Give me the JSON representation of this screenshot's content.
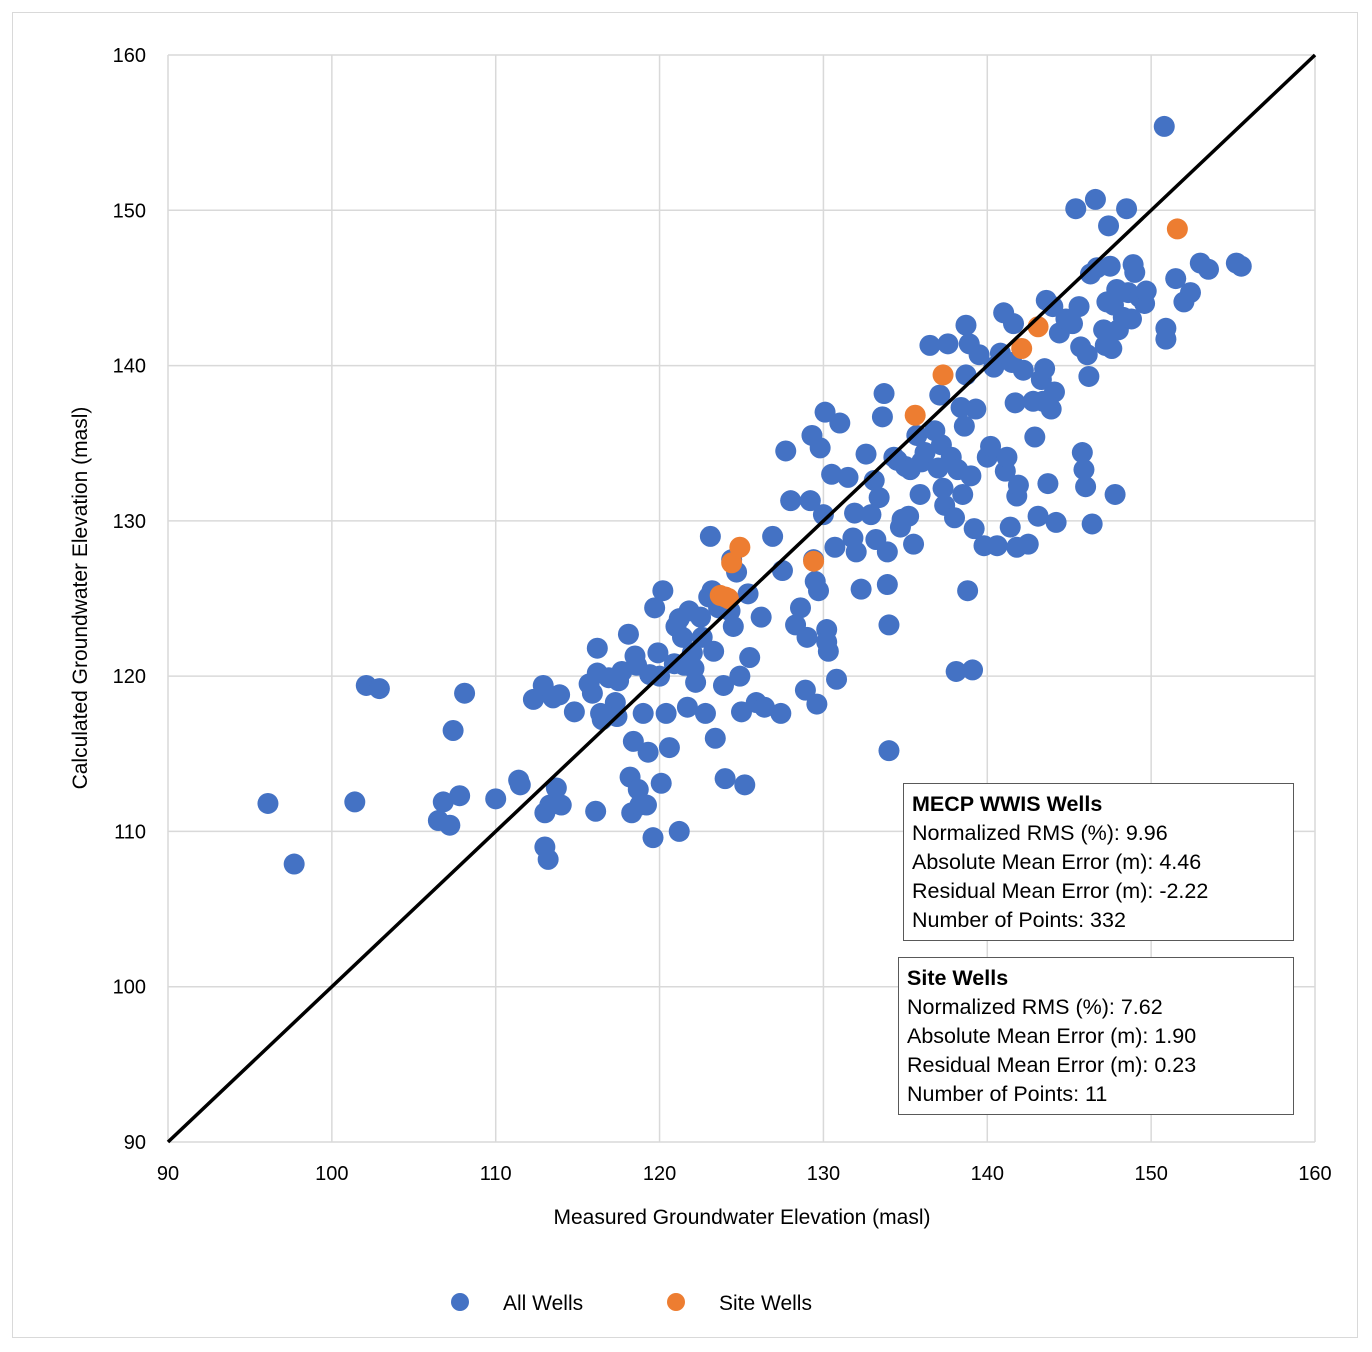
{
  "chart_data": {
    "type": "scatter",
    "xlabel": "Measured Groundwater Elevation (masl)",
    "ylabel": "Calculated Groundwater Elevation (masl)",
    "xlim": [
      90,
      160
    ],
    "ylim": [
      90,
      160
    ],
    "xticks": [
      "90",
      "100",
      "110",
      "120",
      "130",
      "140",
      "150",
      "160"
    ],
    "yticks": [
      "90",
      "100",
      "110",
      "120",
      "130",
      "140",
      "150",
      "160"
    ],
    "grid": true,
    "legend_position": "bottom",
    "reference_line": {
      "x": [
        90,
        160
      ],
      "y": [
        90,
        160
      ],
      "color": "#000000"
    },
    "series": [
      {
        "name": "All Wells",
        "color": "#4472C4",
        "points": [
          [
            96.1,
            111.8
          ],
          [
            97.7,
            107.9
          ],
          [
            101.4,
            111.9
          ],
          [
            102.1,
            119.4
          ],
          [
            102.9,
            119.2
          ],
          [
            106.5,
            110.7
          ],
          [
            106.8,
            111.9
          ],
          [
            107.2,
            110.4
          ],
          [
            107.4,
            116.5
          ],
          [
            107.8,
            112.3
          ],
          [
            108.1,
            118.9
          ],
          [
            110.0,
            112.1
          ],
          [
            111.4,
            113.3
          ],
          [
            111.5,
            113.0
          ],
          [
            112.3,
            118.5
          ],
          [
            112.9,
            119.4
          ],
          [
            113.0,
            109.0
          ],
          [
            113.0,
            111.2
          ],
          [
            113.2,
            108.2
          ],
          [
            113.3,
            111.7
          ],
          [
            113.5,
            118.6
          ],
          [
            113.7,
            112.8
          ],
          [
            113.9,
            118.8
          ],
          [
            114.0,
            111.7
          ],
          [
            114.8,
            117.7
          ],
          [
            115.7,
            119.5
          ],
          [
            115.9,
            118.9
          ],
          [
            116.1,
            111.3
          ],
          [
            116.2,
            120.2
          ],
          [
            116.2,
            121.8
          ],
          [
            116.4,
            117.6
          ],
          [
            116.5,
            117.2
          ],
          [
            116.9,
            119.9
          ],
          [
            117.3,
            118.3
          ],
          [
            117.4,
            117.4
          ],
          [
            117.5,
            119.7
          ],
          [
            117.7,
            120.3
          ],
          [
            118.1,
            122.7
          ],
          [
            118.2,
            113.5
          ],
          [
            118.3,
            111.2
          ],
          [
            118.4,
            115.8
          ],
          [
            118.5,
            121.3
          ],
          [
            118.6,
            120.7
          ],
          [
            118.7,
            112.7
          ],
          [
            118.8,
            111.7
          ],
          [
            119.0,
            117.6
          ],
          [
            119.2,
            111.7
          ],
          [
            119.3,
            115.1
          ],
          [
            119.4,
            120.1
          ],
          [
            119.6,
            109.6
          ],
          [
            119.7,
            124.4
          ],
          [
            119.9,
            121.5
          ],
          [
            120.0,
            120.0
          ],
          [
            120.1,
            113.1
          ],
          [
            120.2,
            125.5
          ],
          [
            120.4,
            117.6
          ],
          [
            120.6,
            115.4
          ],
          [
            120.9,
            120.8
          ],
          [
            121.0,
            123.2
          ],
          [
            121.2,
            123.7
          ],
          [
            121.2,
            110.0
          ],
          [
            121.4,
            122.5
          ],
          [
            121.5,
            120.7
          ],
          [
            121.7,
            118.0
          ],
          [
            121.8,
            124.2
          ],
          [
            122.0,
            121.5
          ],
          [
            122.1,
            120.5
          ],
          [
            122.2,
            119.6
          ],
          [
            122.5,
            123.8
          ],
          [
            122.6,
            122.5
          ],
          [
            122.8,
            117.6
          ],
          [
            123.0,
            125.1
          ],
          [
            123.1,
            129.0
          ],
          [
            123.2,
            125.5
          ],
          [
            123.3,
            121.6
          ],
          [
            123.4,
            116.0
          ],
          [
            123.6,
            124.4
          ],
          [
            123.9,
            119.4
          ],
          [
            124.0,
            113.4
          ],
          [
            124.3,
            124.2
          ],
          [
            124.4,
            127.5
          ],
          [
            124.5,
            123.2
          ],
          [
            124.7,
            126.7
          ],
          [
            124.9,
            120.0
          ],
          [
            125.0,
            117.7
          ],
          [
            125.2,
            113.0
          ],
          [
            125.4,
            125.3
          ],
          [
            125.5,
            121.2
          ],
          [
            125.9,
            118.3
          ],
          [
            126.2,
            123.8
          ],
          [
            126.4,
            118.0
          ],
          [
            126.9,
            129.0
          ],
          [
            127.4,
            117.6
          ],
          [
            127.5,
            126.8
          ],
          [
            127.7,
            134.5
          ],
          [
            128.0,
            131.3
          ],
          [
            128.3,
            123.3
          ],
          [
            128.6,
            124.4
          ],
          [
            128.9,
            119.1
          ],
          [
            129.0,
            122.5
          ],
          [
            129.2,
            131.3
          ],
          [
            129.3,
            135.5
          ],
          [
            129.4,
            127.5
          ],
          [
            129.5,
            126.1
          ],
          [
            129.6,
            118.2
          ],
          [
            129.7,
            125.5
          ],
          [
            129.8,
            134.7
          ],
          [
            130.0,
            130.4
          ],
          [
            130.1,
            137.0
          ],
          [
            130.2,
            123.0
          ],
          [
            130.2,
            122.2
          ],
          [
            130.3,
            121.6
          ],
          [
            130.5,
            133.0
          ],
          [
            130.7,
            128.3
          ],
          [
            130.8,
            119.8
          ],
          [
            131.0,
            136.3
          ],
          [
            131.5,
            132.8
          ],
          [
            131.8,
            128.9
          ],
          [
            131.9,
            130.5
          ],
          [
            132.0,
            128.0
          ],
          [
            132.3,
            125.6
          ],
          [
            132.6,
            134.3
          ],
          [
            132.9,
            130.4
          ],
          [
            133.1,
            132.6
          ],
          [
            133.2,
            128.8
          ],
          [
            133.4,
            131.5
          ],
          [
            133.6,
            136.7
          ],
          [
            133.7,
            138.2
          ],
          [
            133.9,
            128.0
          ],
          [
            133.9,
            125.9
          ],
          [
            134.0,
            123.3
          ],
          [
            134.0,
            115.2
          ],
          [
            134.3,
            134.1
          ],
          [
            134.5,
            133.9
          ],
          [
            134.7,
            129.6
          ],
          [
            134.8,
            130.1
          ],
          [
            135.0,
            133.5
          ],
          [
            135.2,
            130.3
          ],
          [
            135.3,
            133.3
          ],
          [
            135.5,
            128.5
          ],
          [
            135.7,
            135.5
          ],
          [
            135.9,
            131.7
          ],
          [
            136.0,
            133.8
          ],
          [
            136.2,
            134.4
          ],
          [
            136.5,
            141.3
          ],
          [
            136.8,
            135.8
          ],
          [
            137.0,
            133.4
          ],
          [
            137.1,
            138.1
          ],
          [
            137.2,
            134.9
          ],
          [
            137.3,
            132.1
          ],
          [
            137.4,
            131.0
          ],
          [
            137.6,
            141.4
          ],
          [
            137.8,
            134.1
          ],
          [
            138.0,
            130.2
          ],
          [
            138.1,
            120.3
          ],
          [
            138.2,
            133.3
          ],
          [
            138.4,
            137.3
          ],
          [
            138.5,
            131.7
          ],
          [
            138.6,
            136.1
          ],
          [
            138.7,
            142.6
          ],
          [
            138.7,
            139.4
          ],
          [
            138.8,
            125.5
          ],
          [
            138.9,
            141.4
          ],
          [
            139.0,
            132.9
          ],
          [
            139.1,
            120.4
          ],
          [
            139.2,
            129.5
          ],
          [
            139.3,
            137.2
          ],
          [
            139.5,
            140.7
          ],
          [
            139.8,
            128.4
          ],
          [
            140.0,
            134.1
          ],
          [
            140.2,
            134.8
          ],
          [
            140.4,
            139.9
          ],
          [
            140.6,
            128.4
          ],
          [
            140.8,
            140.8
          ],
          [
            141.0,
            143.4
          ],
          [
            141.1,
            133.2
          ],
          [
            141.2,
            134.1
          ],
          [
            141.4,
            129.6
          ],
          [
            141.5,
            140.2
          ],
          [
            141.6,
            142.7
          ],
          [
            141.7,
            137.6
          ],
          [
            141.8,
            131.6
          ],
          [
            141.8,
            128.3
          ],
          [
            141.9,
            132.3
          ],
          [
            142.2,
            139.7
          ],
          [
            142.5,
            128.5
          ],
          [
            142.8,
            137.7
          ],
          [
            142.9,
            135.4
          ],
          [
            143.1,
            130.3
          ],
          [
            143.3,
            139.1
          ],
          [
            143.4,
            137.7
          ],
          [
            143.5,
            139.8
          ],
          [
            143.6,
            144.2
          ],
          [
            143.7,
            132.4
          ],
          [
            143.9,
            137.2
          ],
          [
            144.0,
            143.8
          ],
          [
            144.1,
            138.3
          ],
          [
            144.2,
            129.9
          ],
          [
            144.4,
            142.1
          ],
          [
            144.8,
            143.0
          ],
          [
            145.2,
            142.7
          ],
          [
            145.4,
            150.1
          ],
          [
            145.6,
            143.8
          ],
          [
            145.7,
            141.2
          ],
          [
            145.8,
            134.4
          ],
          [
            145.9,
            133.3
          ],
          [
            146.0,
            132.2
          ],
          [
            146.1,
            140.7
          ],
          [
            146.2,
            139.3
          ],
          [
            146.3,
            145.9
          ],
          [
            146.4,
            129.8
          ],
          [
            146.6,
            150.7
          ],
          [
            146.7,
            146.3
          ],
          [
            147.1,
            142.3
          ],
          [
            147.2,
            141.3
          ],
          [
            147.3,
            144.1
          ],
          [
            147.4,
            149.0
          ],
          [
            147.5,
            146.4
          ],
          [
            147.6,
            141.1
          ],
          [
            147.7,
            143.9
          ],
          [
            147.8,
            131.7
          ],
          [
            147.9,
            144.9
          ],
          [
            148.0,
            142.3
          ],
          [
            148.3,
            143.1
          ],
          [
            148.5,
            150.1
          ],
          [
            148.6,
            144.7
          ],
          [
            148.8,
            143.0
          ],
          [
            148.9,
            146.5
          ],
          [
            149.0,
            146.0
          ],
          [
            149.3,
            144.4
          ],
          [
            149.6,
            144.0
          ],
          [
            149.7,
            144.8
          ],
          [
            150.8,
            155.4
          ],
          [
            150.9,
            142.4
          ],
          [
            150.9,
            141.7
          ],
          [
            151.5,
            145.6
          ],
          [
            152.0,
            144.1
          ],
          [
            152.4,
            144.7
          ],
          [
            153.0,
            146.6
          ],
          [
            153.5,
            146.2
          ],
          [
            155.2,
            146.6
          ],
          [
            155.5,
            146.4
          ]
        ]
      },
      {
        "name": "Site Wells",
        "color": "#ED7D31",
        "points": [
          [
            123.7,
            125.2
          ],
          [
            124.2,
            125.0
          ],
          [
            124.4,
            127.3
          ],
          [
            124.9,
            128.3
          ],
          [
            129.4,
            127.4
          ],
          [
            135.6,
            136.8
          ],
          [
            137.3,
            139.4
          ],
          [
            142.1,
            141.1
          ],
          [
            143.1,
            142.5
          ],
          [
            151.6,
            148.8
          ],
          [
            124.0,
            125.1
          ]
        ]
      }
    ],
    "annotations": [
      {
        "title": "MECP WWIS Wells",
        "lines": [
          "Normalized RMS (%): 9.96",
          "Absolute Mean Error (m): 4.46",
          "Residual Mean Error (m): -2.22",
          "Number of Points: 332"
        ]
      },
      {
        "title": "Site Wells",
        "lines": [
          "Normalized RMS (%): 7.62",
          "Absolute Mean Error (m): 1.90",
          "Residual Mean Error (m): 0.23",
          "Number of Points: 11"
        ]
      }
    ]
  }
}
